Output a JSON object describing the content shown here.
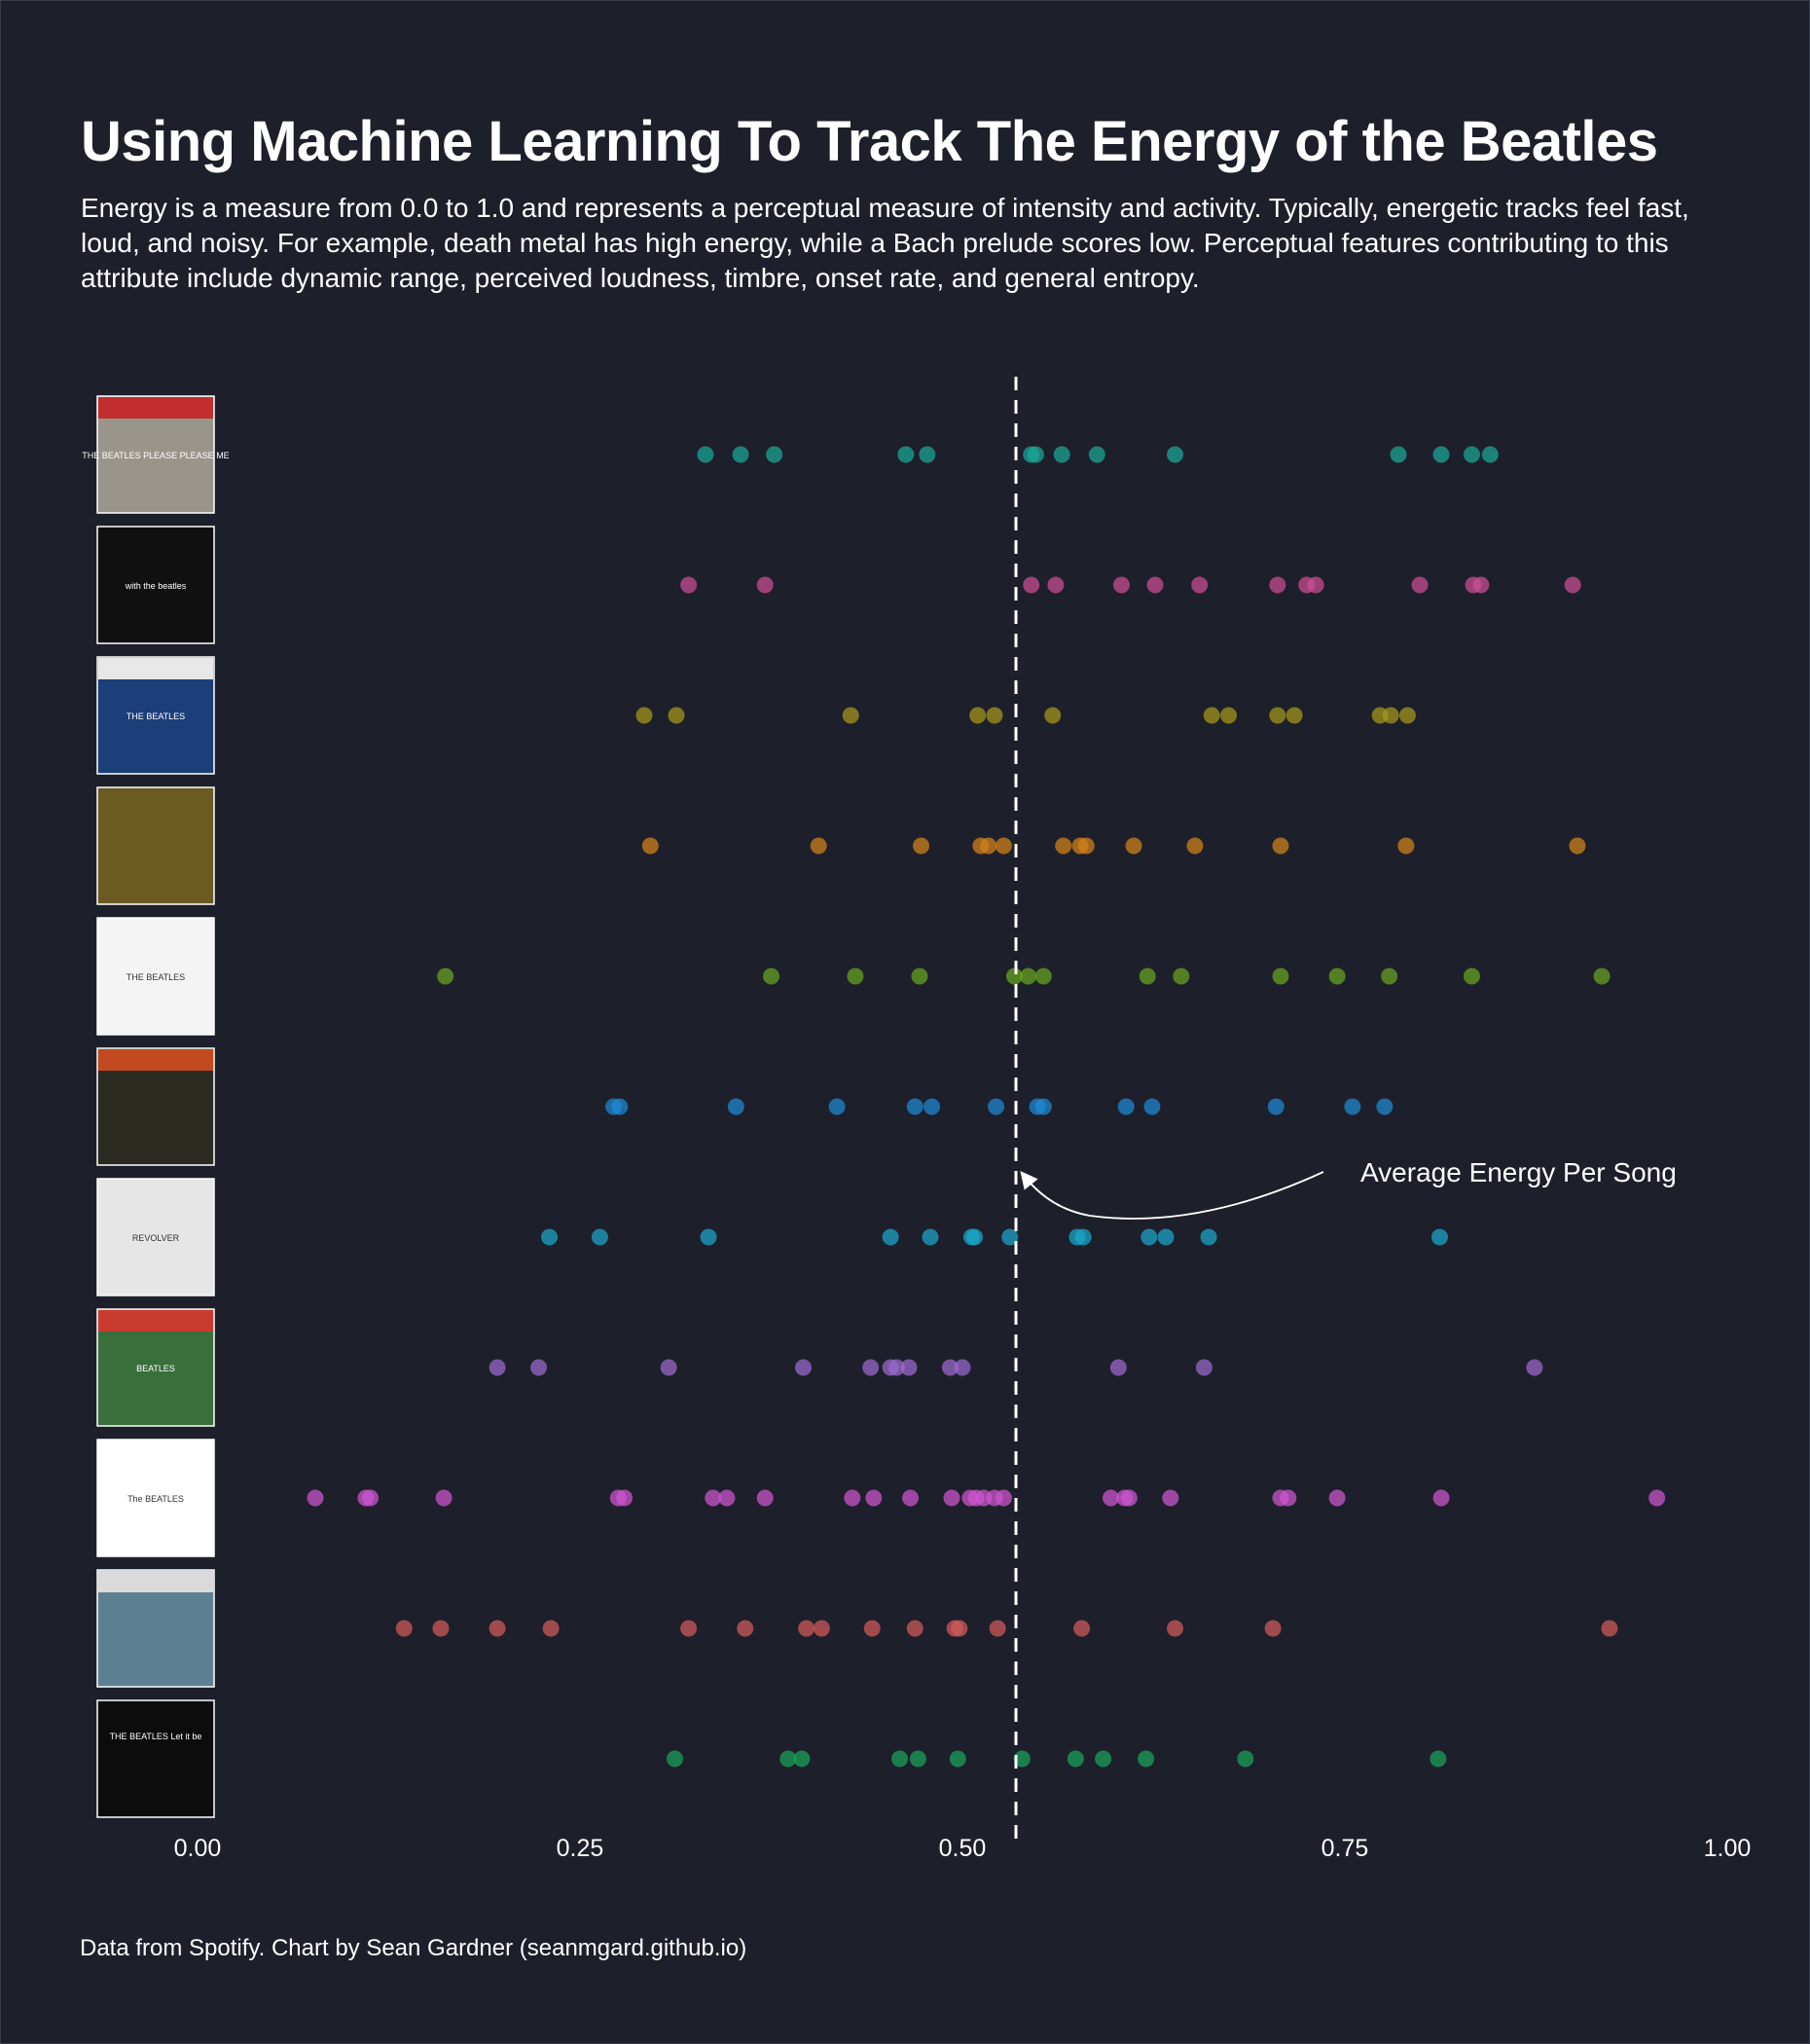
{
  "title": "Using Machine Learning To Track The Energy of the Beatles",
  "subtitle": "Energy is a measure from 0.0 to 1.0 and represents a perceptual measure of intensity and activity. Typically, energetic tracks feel fast, loud, and noisy. For example, death metal has high energy, while a Bach prelude scores low. Perceptual features contributing to this attribute include dynamic range, perceived loudness, timbre, onset rate, and general entropy.",
  "caption": "Data from Spotify. Chart by Sean Gardner (seanmgard.github.io)",
  "chart_data": {
    "type": "scatter",
    "xlim": [
      0,
      1
    ],
    "x_ticks": [
      0,
      0.25,
      0.5,
      0.75,
      1
    ],
    "x_tick_labels": [
      "0.00",
      "0.25",
      "0.50",
      "0.75",
      "1.00"
    ],
    "grid": false,
    "average_energy": 0.535,
    "annotation": {
      "text": "Average Energy Per Song",
      "x": 0.535
    },
    "series": [
      {
        "album_art_text": "THE BEATLES PLEASE PLEASE ME",
        "color": "#1aa99a",
        "values": [
          0.332,
          0.355,
          0.377,
          0.463,
          0.477,
          0.545,
          0.548,
          0.565,
          0.588,
          0.639,
          0.785,
          0.813,
          0.833,
          0.845
        ]
      },
      {
        "album_art_text": "with the beatles",
        "color": "#cc4f97",
        "values": [
          0.321,
          0.371,
          0.545,
          0.561,
          0.604,
          0.626,
          0.655,
          0.706,
          0.725,
          0.731,
          0.799,
          0.834,
          0.839,
          0.899
        ]
      },
      {
        "album_art_text": "THE BEATLES",
        "color": "#a6991c",
        "values": [
          0.292,
          0.313,
          0.427,
          0.51,
          0.521,
          0.559,
          0.663,
          0.674,
          0.706,
          0.717,
          0.773,
          0.78,
          0.791
        ]
      },
      {
        "album_art_text": "",
        "color": "#d2841a",
        "values": [
          0.296,
          0.406,
          0.473,
          0.512,
          0.517,
          0.527,
          0.566,
          0.577,
          0.581,
          0.612,
          0.652,
          0.708,
          0.79,
          0.902
        ]
      },
      {
        "album_art_text": "THE BEATLES",
        "color": "#68a620",
        "values": [
          0.162,
          0.375,
          0.43,
          0.472,
          0.534,
          0.543,
          0.553,
          0.621,
          0.643,
          0.708,
          0.745,
          0.779,
          0.833,
          0.918
        ]
      },
      {
        "album_art_text": "",
        "color": "#1d8ad7",
        "values": [
          0.272,
          0.276,
          0.352,
          0.418,
          0.469,
          0.48,
          0.522,
          0.549,
          0.553,
          0.607,
          0.624,
          0.705,
          0.755,
          0.776
        ]
      },
      {
        "album_art_text": "REVOLVER",
        "color": "#1ca8cc",
        "values": [
          0.23,
          0.263,
          0.334,
          0.453,
          0.479,
          0.506,
          0.508,
          0.531,
          0.575,
          0.579,
          0.622,
          0.633,
          0.661,
          0.812
        ]
      },
      {
        "album_art_text": "BEATLES",
        "color": "#9b6bcf",
        "values": [
          0.196,
          0.223,
          0.308,
          0.396,
          0.44,
          0.453,
          0.457,
          0.465,
          0.492,
          0.5,
          0.602,
          0.658,
          0.874
        ]
      },
      {
        "album_art_text": "The BEATLES",
        "color": "#cf57d2",
        "values": [
          0.077,
          0.11,
          0.113,
          0.161,
          0.275,
          0.279,
          0.337,
          0.346,
          0.371,
          0.428,
          0.442,
          0.466,
          0.493,
          0.505,
          0.509,
          0.514,
          0.521,
          0.527,
          0.597,
          0.606,
          0.609,
          0.636,
          0.708,
          0.713,
          0.745,
          0.813,
          0.954
        ]
      },
      {
        "album_art_text": "",
        "color": "#d25b5b",
        "values": [
          0.135,
          0.159,
          0.196,
          0.231,
          0.321,
          0.358,
          0.398,
          0.408,
          0.441,
          0.469,
          0.495,
          0.498,
          0.523,
          0.578,
          0.639,
          0.703,
          0.923
        ]
      },
      {
        "album_art_text": "THE BEATLES Let it be",
        "color": "#1aa55c",
        "values": [
          0.312,
          0.386,
          0.395,
          0.459,
          0.471,
          0.497,
          0.539,
          0.574,
          0.592,
          0.62,
          0.685,
          0.811
        ]
      }
    ]
  }
}
